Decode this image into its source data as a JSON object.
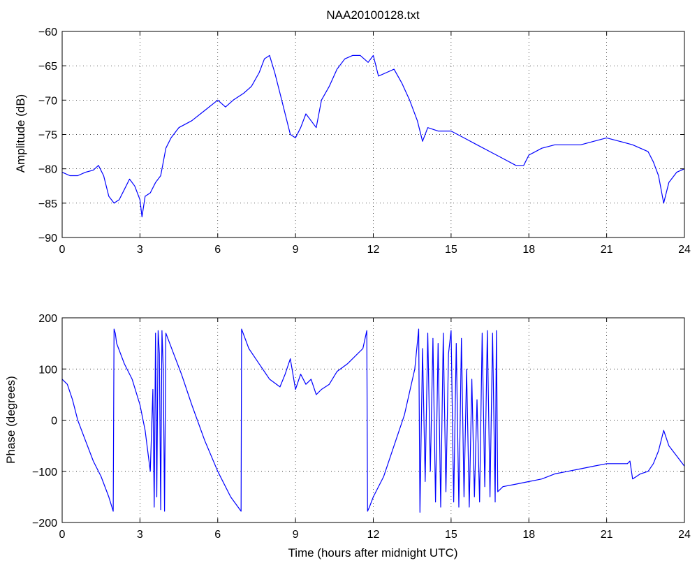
{
  "chart_data": [
    {
      "type": "line",
      "title": "NAA20100128.txt",
      "xlabel": "",
      "ylabel": "Amplitude (dB)",
      "xlim": [
        0,
        24
      ],
      "ylim": [
        -90,
        -60
      ],
      "xticks": [
        0,
        3,
        6,
        9,
        12,
        15,
        18,
        21,
        24
      ],
      "yticks": [
        -90,
        -85,
        -80,
        -75,
        -70,
        -65,
        -60
      ],
      "grid": true,
      "color": "#0000ff",
      "series": [
        {
          "x": [
            0,
            0.3,
            0.6,
            0.9,
            1.2,
            1.4,
            1.6,
            1.8,
            2.0,
            2.2,
            2.4,
            2.6,
            2.8,
            3.0,
            3.08,
            3.2,
            3.4,
            3.6,
            3.8,
            4.0,
            4.2,
            4.5,
            5.0,
            5.5,
            6.0,
            6.3,
            6.6,
            7.0,
            7.3,
            7.6,
            7.8,
            8.0,
            8.2,
            8.4,
            8.6,
            8.8,
            9.0,
            9.2,
            9.4,
            9.6,
            9.8,
            10.0,
            10.3,
            10.6,
            10.9,
            11.2,
            11.5,
            11.8,
            12.0,
            12.2,
            12.5,
            12.8,
            13.1,
            13.4,
            13.7,
            13.9,
            14.1,
            14.5,
            15.0,
            15.5,
            16.0,
            16.5,
            17.0,
            17.5,
            17.8,
            18.0,
            18.5,
            19.0,
            19.5,
            20.0,
            20.5,
            21.0,
            21.5,
            22.0,
            22.3,
            22.6,
            22.8,
            23.0,
            23.2,
            23.4,
            23.7,
            24.0
          ],
          "y": [
            -80.5,
            -81,
            -81,
            -80.5,
            -80.2,
            -79.5,
            -81,
            -84,
            -85,
            -84.5,
            -83,
            -81.5,
            -82.5,
            -84.5,
            -87,
            -84,
            -83.5,
            -82,
            -81,
            -77,
            -75.5,
            -74,
            -73,
            -71.5,
            -70,
            -71,
            -70,
            -69,
            -68,
            -66,
            -64,
            -63.5,
            -66,
            -69,
            -72,
            -75,
            -75.5,
            -74,
            -72,
            -73,
            -74,
            -70,
            -68,
            -65.5,
            -64,
            -63.5,
            -63.5,
            -64.5,
            -63.5,
            -66.5,
            -66,
            -65.5,
            -67.5,
            -70,
            -73,
            -76,
            -74,
            -74.5,
            -74.5,
            -75.5,
            -76.5,
            -77.5,
            -78.5,
            -79.5,
            -79.5,
            -78,
            -77,
            -76.5,
            -76.5,
            -76.5,
            -76,
            -75.5,
            -76,
            -76.5,
            -77,
            -77.5,
            -79,
            -81,
            -85,
            -82,
            -80.5,
            -80
          ]
        }
      ]
    },
    {
      "type": "line",
      "title": "",
      "xlabel": "Time (hours after midnight UTC)",
      "ylabel": "Phase (degrees)",
      "xlim": [
        0,
        24
      ],
      "ylim": [
        -200,
        200
      ],
      "xticks": [
        0,
        3,
        6,
        9,
        12,
        15,
        18,
        21,
        24
      ],
      "yticks": [
        -200,
        -100,
        0,
        100,
        200
      ],
      "grid": true,
      "color": "#0000ff",
      "series": [
        {
          "x": [
            0,
            0.2,
            0.4,
            0.6,
            0.9,
            1.2,
            1.5,
            1.8,
            1.97,
            2.0,
            2.05,
            2.1,
            2.4,
            2.7,
            3.0,
            3.2,
            3.3,
            3.4,
            3.5,
            3.55,
            3.6,
            3.65,
            3.7,
            3.75,
            3.8,
            3.85,
            3.9,
            3.95,
            4.0,
            4.3,
            4.6,
            5.0,
            5.5,
            6.0,
            6.5,
            6.9,
            6.92,
            7.2,
            7.6,
            8.0,
            8.4,
            8.6,
            8.8,
            9.0,
            9.2,
            9.4,
            9.6,
            9.8,
            10.0,
            10.3,
            10.6,
            11.0,
            11.3,
            11.6,
            11.75,
            11.78,
            11.85,
            12.0,
            12.4,
            12.8,
            13.2,
            13.6,
            13.75,
            13.8,
            13.9,
            14.0,
            14.1,
            14.2,
            14.3,
            14.4,
            14.5,
            14.6,
            14.7,
            14.8,
            14.9,
            15.0,
            15.1,
            15.2,
            15.3,
            15.4,
            15.5,
            15.6,
            15.7,
            15.8,
            15.9,
            16.0,
            16.1,
            16.2,
            16.3,
            16.4,
            16.5,
            16.6,
            16.7,
            16.75,
            16.8,
            17.0,
            17.5,
            18.0,
            18.5,
            19.0,
            19.5,
            20.0,
            20.5,
            21.0,
            21.5,
            21.8,
            21.9,
            22.0,
            22.3,
            22.6,
            22.8,
            23.0,
            23.2,
            23.4,
            23.7,
            24.0
          ],
          "y": [
            80,
            70,
            40,
            0,
            -40,
            -80,
            -110,
            -150,
            -178,
            178,
            170,
            150,
            110,
            80,
            30,
            -20,
            -60,
            -100,
            60,
            -170,
            170,
            -150,
            175,
            130,
            -175,
            175,
            100,
            -178,
            170,
            130,
            90,
            30,
            -40,
            -100,
            -150,
            -178,
            178,
            140,
            110,
            80,
            65,
            90,
            120,
            60,
            90,
            70,
            80,
            50,
            60,
            70,
            95,
            110,
            125,
            140,
            175,
            -178,
            -170,
            -150,
            -110,
            -50,
            10,
            100,
            178,
            -180,
            140,
            -120,
            170,
            -100,
            160,
            -160,
            150,
            -170,
            170,
            -140,
            130,
            175,
            -160,
            150,
            -170,
            160,
            -150,
            100,
            -170,
            80,
            -150,
            40,
            -160,
            170,
            -130,
            175,
            -150,
            170,
            -160,
            175,
            -140,
            -130,
            -125,
            -120,
            -115,
            -105,
            -100,
            -95,
            -90,
            -85,
            -85,
            -85,
            -80,
            -115,
            -105,
            -100,
            -85,
            -60,
            -20,
            -50,
            -70,
            -90
          ]
        }
      ]
    }
  ]
}
